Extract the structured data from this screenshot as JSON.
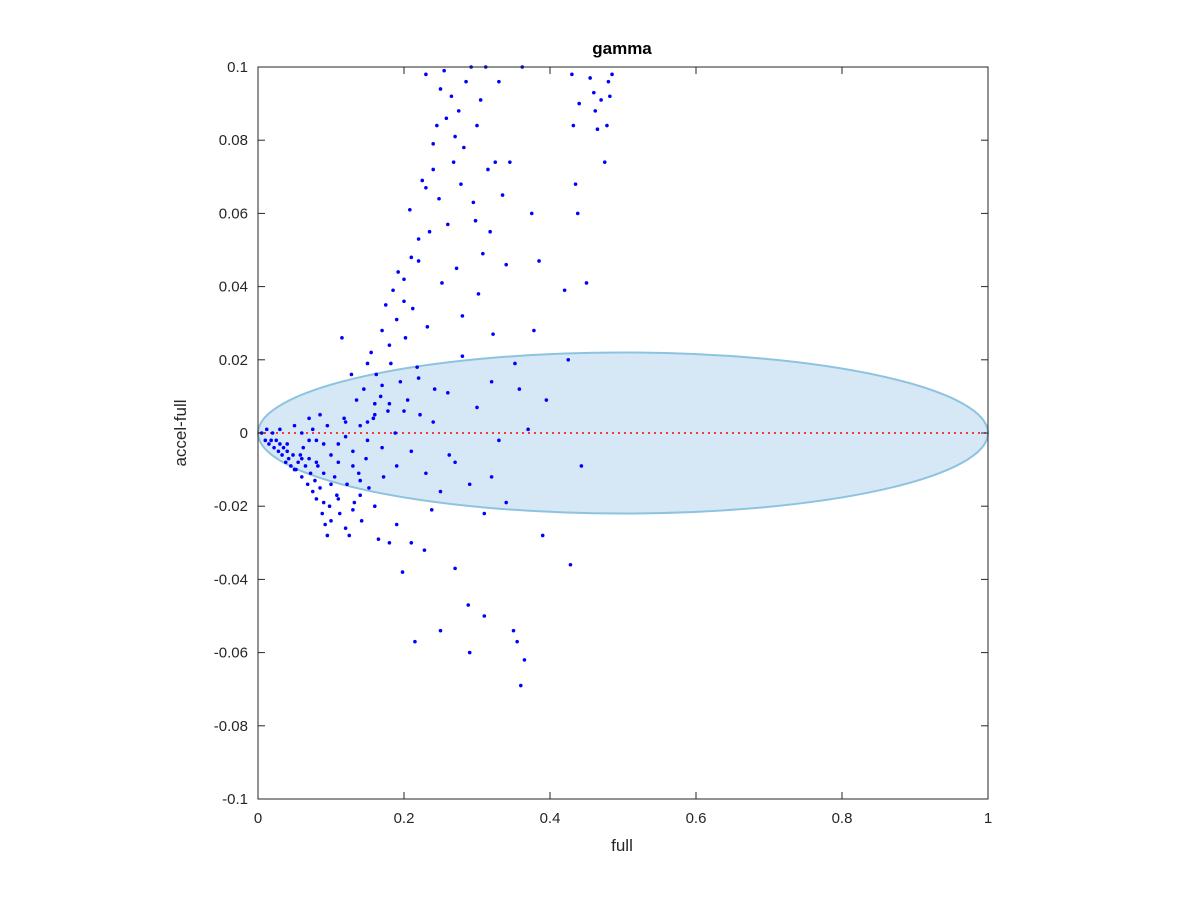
{
  "chart_data": {
    "type": "scatter",
    "title": "gamma",
    "xlabel": "full",
    "ylabel": "accel-full",
    "xlim": [
      0,
      1
    ],
    "ylim": [
      -0.1,
      0.1
    ],
    "xticks": [
      0,
      0.2,
      0.4,
      0.6,
      0.8,
      1
    ],
    "xtick_labels": [
      "0",
      "0.2",
      "0.4",
      "0.6",
      "0.8",
      "1"
    ],
    "yticks": [
      -0.1,
      -0.08,
      -0.06,
      -0.04,
      -0.02,
      0,
      0.02,
      0.04,
      0.06,
      0.08,
      0.1
    ],
    "ytick_labels": [
      "-0.1",
      "-0.08",
      "-0.06",
      "-0.04",
      "-0.02",
      "0",
      "0.02",
      "0.04",
      "0.06",
      "0.08",
      "0.1"
    ],
    "grid": false,
    "colors": {
      "points": "#0000ff",
      "ellipse_fill": "#d6e8f5",
      "ellipse_stroke": "#8ec3e0",
      "zero_line": "#ff0000",
      "axes": "#262626"
    },
    "reference_line": {
      "y": 0,
      "x_range": [
        0,
        1
      ],
      "style": "dotted"
    },
    "ellipse": {
      "center": [
        0.5,
        0
      ],
      "semi_x": 0.5,
      "semi_y": 0.022
    },
    "series": [
      {
        "points": [
          [
            0.005,
            0.0
          ],
          [
            0.01,
            -0.002
          ],
          [
            0.012,
            0.001
          ],
          [
            0.015,
            -0.003
          ],
          [
            0.018,
            -0.002
          ],
          [
            0.02,
            0.0
          ],
          [
            0.022,
            -0.004
          ],
          [
            0.025,
            -0.002
          ],
          [
            0.028,
            -0.005
          ],
          [
            0.03,
            -0.003
          ],
          [
            0.033,
            -0.006
          ],
          [
            0.035,
            -0.004
          ],
          [
            0.038,
            -0.008
          ],
          [
            0.04,
            -0.005
          ],
          [
            0.042,
            -0.007
          ],
          [
            0.045,
            -0.009
          ],
          [
            0.048,
            -0.006
          ],
          [
            0.05,
            0.002
          ],
          [
            0.052,
            -0.01
          ],
          [
            0.055,
            -0.008
          ],
          [
            0.058,
            -0.006
          ],
          [
            0.06,
            -0.012
          ],
          [
            0.062,
            -0.004
          ],
          [
            0.065,
            -0.009
          ],
          [
            0.068,
            -0.014
          ],
          [
            0.07,
            -0.007
          ],
          [
            0.072,
            -0.011
          ],
          [
            0.075,
            -0.016
          ],
          [
            0.078,
            -0.013
          ],
          [
            0.08,
            -0.018
          ],
          [
            0.082,
            -0.009
          ],
          [
            0.085,
            -0.015
          ],
          [
            0.088,
            -0.022
          ],
          [
            0.09,
            -0.019
          ],
          [
            0.092,
            -0.025
          ],
          [
            0.095,
            -0.028
          ],
          [
            0.098,
            -0.02
          ],
          [
            0.1,
            -0.024
          ],
          [
            0.085,
            0.005
          ],
          [
            0.09,
            -0.003
          ],
          [
            0.095,
            0.002
          ],
          [
            0.1,
            -0.006
          ],
          [
            0.105,
            -0.012
          ],
          [
            0.108,
            -0.017
          ],
          [
            0.11,
            -0.008
          ],
          [
            0.112,
            -0.022
          ],
          [
            0.115,
            0.026
          ],
          [
            0.118,
            0.004
          ],
          [
            0.12,
            -0.001
          ],
          [
            0.122,
            -0.014
          ],
          [
            0.125,
            -0.028
          ],
          [
            0.128,
            0.016
          ],
          [
            0.13,
            -0.005
          ],
          [
            0.132,
            -0.019
          ],
          [
            0.135,
            0.009
          ],
          [
            0.138,
            -0.011
          ],
          [
            0.14,
            0.002
          ],
          [
            0.142,
            -0.024
          ],
          [
            0.145,
            0.012
          ],
          [
            0.148,
            -0.007
          ],
          [
            0.15,
            0.019
          ],
          [
            0.152,
            -0.015
          ],
          [
            0.155,
            0.022
          ],
          [
            0.158,
            0.004
          ],
          [
            0.16,
            -0.02
          ],
          [
            0.162,
            0.016
          ],
          [
            0.165,
            -0.029
          ],
          [
            0.168,
            0.01
          ],
          [
            0.17,
            0.028
          ],
          [
            0.172,
            -0.012
          ],
          [
            0.175,
            0.035
          ],
          [
            0.178,
            0.006
          ],
          [
            0.18,
            -0.03
          ],
          [
            0.182,
            0.019
          ],
          [
            0.185,
            0.039
          ],
          [
            0.188,
            0.0
          ],
          [
            0.19,
            -0.025
          ],
          [
            0.192,
            0.044
          ],
          [
            0.195,
            0.014
          ],
          [
            0.198,
            -0.038
          ],
          [
            0.2,
            0.042
          ],
          [
            0.202,
            0.026
          ],
          [
            0.205,
            0.009
          ],
          [
            0.208,
            0.061
          ],
          [
            0.21,
            -0.03
          ],
          [
            0.212,
            0.034
          ],
          [
            0.215,
            -0.057
          ],
          [
            0.218,
            0.018
          ],
          [
            0.22,
            0.047
          ],
          [
            0.222,
            0.005
          ],
          [
            0.225,
            0.069
          ],
          [
            0.228,
            -0.032
          ],
          [
            0.23,
            0.098
          ],
          [
            0.232,
            0.029
          ],
          [
            0.235,
            0.055
          ],
          [
            0.238,
            -0.021
          ],
          [
            0.24,
            0.079
          ],
          [
            0.242,
            0.012
          ],
          [
            0.245,
            0.084
          ],
          [
            0.248,
            0.064
          ],
          [
            0.25,
            -0.054
          ],
          [
            0.252,
            0.041
          ],
          [
            0.255,
            0.099
          ],
          [
            0.258,
            0.086
          ],
          [
            0.26,
            0.057
          ],
          [
            0.262,
            -0.006
          ],
          [
            0.265,
            0.092
          ],
          [
            0.268,
            0.074
          ],
          [
            0.27,
            -0.037
          ],
          [
            0.272,
            0.045
          ],
          [
            0.275,
            0.088
          ],
          [
            0.278,
            0.068
          ],
          [
            0.28,
            0.032
          ],
          [
            0.282,
            0.078
          ],
          [
            0.285,
            0.096
          ],
          [
            0.288,
            -0.047
          ],
          [
            0.29,
            -0.06
          ],
          [
            0.292,
            0.1
          ],
          [
            0.295,
            0.063
          ],
          [
            0.298,
            0.058
          ],
          [
            0.3,
            0.084
          ],
          [
            0.302,
            0.038
          ],
          [
            0.305,
            0.091
          ],
          [
            0.308,
            0.049
          ],
          [
            0.31,
            -0.05
          ],
          [
            0.312,
            0.1
          ],
          [
            0.315,
            0.072
          ],
          [
            0.318,
            0.055
          ],
          [
            0.32,
            -0.012
          ],
          [
            0.322,
            0.027
          ],
          [
            0.325,
            0.074
          ],
          [
            0.33,
            0.096
          ],
          [
            0.335,
            0.065
          ],
          [
            0.34,
            0.046
          ],
          [
            0.345,
            0.074
          ],
          [
            0.35,
            -0.054
          ],
          [
            0.352,
            0.019
          ],
          [
            0.355,
            -0.057
          ],
          [
            0.358,
            0.012
          ],
          [
            0.36,
            -0.069
          ],
          [
            0.362,
            0.1
          ],
          [
            0.365,
            -0.062
          ],
          [
            0.37,
            0.001
          ],
          [
            0.375,
            0.06
          ],
          [
            0.378,
            0.028
          ],
          [
            0.385,
            0.047
          ],
          [
            0.39,
            -0.028
          ],
          [
            0.395,
            0.009
          ],
          [
            0.42,
            0.039
          ],
          [
            0.425,
            0.02
          ],
          [
            0.428,
            -0.036
          ],
          [
            0.43,
            0.098
          ],
          [
            0.432,
            0.084
          ],
          [
            0.435,
            0.068
          ],
          [
            0.438,
            0.06
          ],
          [
            0.44,
            0.09
          ],
          [
            0.443,
            -0.009
          ],
          [
            0.45,
            0.041
          ],
          [
            0.455,
            0.097
          ],
          [
            0.46,
            0.093
          ],
          [
            0.462,
            0.088
          ],
          [
            0.465,
            0.083
          ],
          [
            0.47,
            0.091
          ],
          [
            0.475,
            0.074
          ],
          [
            0.478,
            0.084
          ],
          [
            0.48,
            0.096
          ],
          [
            0.482,
            0.092
          ],
          [
            0.485,
            0.098
          ],
          [
            0.06,
            0.0
          ],
          [
            0.07,
            -0.002
          ],
          [
            0.075,
            0.001
          ],
          [
            0.08,
            -0.008
          ],
          [
            0.11,
            -0.003
          ],
          [
            0.12,
            0.003
          ],
          [
            0.13,
            -0.009
          ],
          [
            0.14,
            -0.013
          ],
          [
            0.15,
            -0.002
          ],
          [
            0.16,
            0.005
          ],
          [
            0.17,
            -0.004
          ],
          [
            0.18,
            0.008
          ],
          [
            0.19,
            -0.009
          ],
          [
            0.2,
            0.006
          ],
          [
            0.21,
            -0.005
          ],
          [
            0.22,
            0.015
          ],
          [
            0.23,
            -0.011
          ],
          [
            0.24,
            0.003
          ],
          [
            0.25,
            -0.016
          ],
          [
            0.26,
            0.011
          ],
          [
            0.27,
            -0.008
          ],
          [
            0.28,
            0.021
          ],
          [
            0.29,
            -0.014
          ],
          [
            0.3,
            0.007
          ],
          [
            0.31,
            -0.022
          ],
          [
            0.32,
            0.014
          ],
          [
            0.33,
            -0.002
          ],
          [
            0.34,
            -0.019
          ],
          [
            0.27,
            0.081
          ],
          [
            0.25,
            0.094
          ],
          [
            0.24,
            0.072
          ],
          [
            0.23,
            0.067
          ],
          [
            0.22,
            0.053
          ],
          [
            0.21,
            0.048
          ],
          [
            0.2,
            0.036
          ],
          [
            0.19,
            0.031
          ],
          [
            0.18,
            0.024
          ],
          [
            0.17,
            0.013
          ],
          [
            0.16,
            0.008
          ],
          [
            0.15,
            0.003
          ],
          [
            0.14,
            -0.017
          ],
          [
            0.13,
            -0.021
          ],
          [
            0.12,
            -0.026
          ],
          [
            0.11,
            -0.018
          ],
          [
            0.1,
            -0.014
          ],
          [
            0.09,
            -0.011
          ],
          [
            0.08,
            -0.002
          ],
          [
            0.07,
            0.004
          ],
          [
            0.06,
            -0.007
          ],
          [
            0.05,
            -0.01
          ],
          [
            0.04,
            -0.003
          ],
          [
            0.03,
            0.001
          ]
        ]
      }
    ]
  }
}
